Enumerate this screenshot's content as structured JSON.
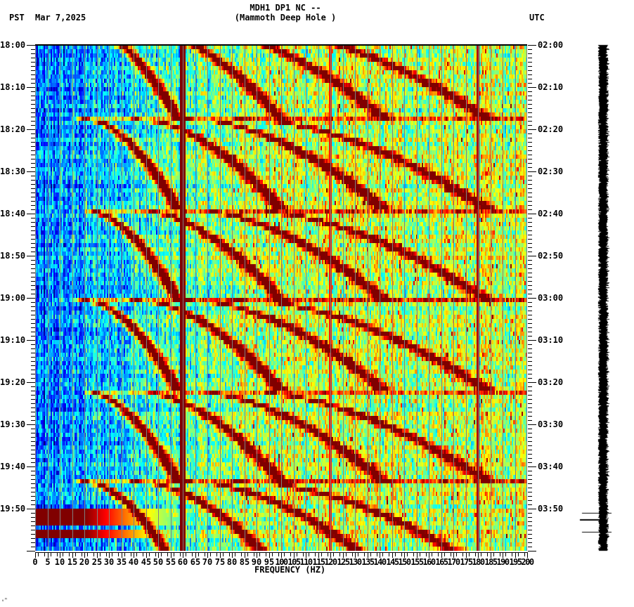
{
  "header": {
    "station_line": "MDH1 DP1 NC --",
    "station_name": "(Mammoth Deep Hole )",
    "left_timezone": "PST",
    "date": "Mar 7,2025",
    "right_timezone": "UTC"
  },
  "footer_mark": "ᵥᴴ",
  "chart_data": {
    "type": "heatmap",
    "title": "MDH1 DP1 NC -- (Mammoth Deep Hole )",
    "subtitle": "PST Mar 7,2025 / UTC",
    "xlabel": "FREQUENCY (HZ)",
    "ylabel_left": "PST time",
    "ylabel_right": "UTC time",
    "xlim": [
      0,
      200
    ],
    "ylim_minutes": [
      0,
      120
    ],
    "x_ticks": [
      "0",
      "5",
      "10",
      "15",
      "20",
      "25",
      "30",
      "35",
      "40",
      "45",
      "50",
      "55",
      "60",
      "65",
      "70",
      "75",
      "80",
      "85",
      "90",
      "95",
      "100",
      "105",
      "110",
      "115",
      "120",
      "125",
      "130",
      "135",
      "140",
      "145",
      "150",
      "155",
      "160",
      "165",
      "170",
      "175",
      "180",
      "185",
      "190",
      "195",
      "200"
    ],
    "y_ticks_left": [
      "18:00",
      "18:10",
      "18:20",
      "18:30",
      "18:40",
      "18:50",
      "19:00",
      "19:10",
      "19:20",
      "19:30",
      "19:40",
      "19:50"
    ],
    "y_ticks_right": [
      "02:00",
      "02:10",
      "02:20",
      "02:30",
      "02:40",
      "02:50",
      "03:00",
      "03:10",
      "03:20",
      "03:30",
      "03:40",
      "03:50"
    ],
    "colormap": "jet",
    "grid": "vertical grey lines every 5 Hz",
    "persistent_lines_hz": [
      60,
      120,
      180
    ],
    "sweep_events_start_min": [
      -4,
      17.5,
      39,
      60.5,
      82,
      103.5
    ],
    "sweep_duration_min": 21.5,
    "sweep_fundamental_range_hz": [
      20,
      58
    ],
    "sweep_harmonic_count": 4,
    "broadband_bursts_min": [
      111,
      113,
      116
    ],
    "notes": "Repeating rising-frequency sweeps (~21.5 min cycle) with harmonics; strong 60 Hz line; low power below ~20 Hz, higher noise floor above ~100 Hz"
  },
  "seismogram": {
    "label": "trace",
    "spike_minutes": [
      111,
      112.5,
      115.5
    ]
  },
  "colors": {
    "background": "#ffffff",
    "axis": "#000000",
    "grid": "#808080",
    "trace": "#000000"
  }
}
